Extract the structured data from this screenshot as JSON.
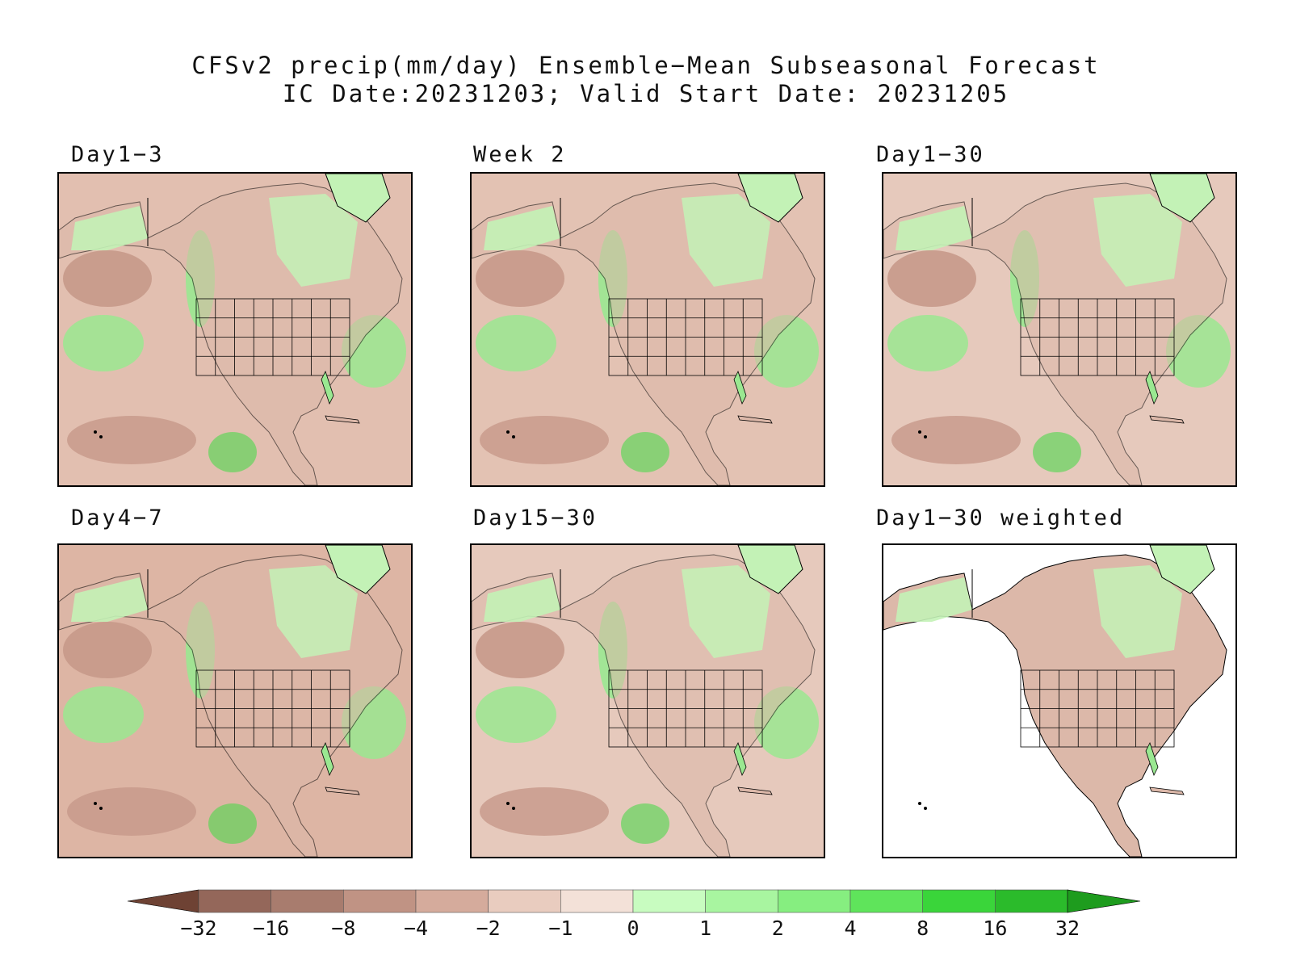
{
  "title": {
    "line1": "CFSv2 precip(mm/day) Ensemble−Mean Subseasonal Forecast",
    "line2": "IC Date:20231203; Valid Start Date: 20231205"
  },
  "panels": [
    {
      "label": "Day1−3",
      "background": "#e2bfb0",
      "wet": 3,
      "dry": 3
    },
    {
      "label": "Week 2",
      "background": "#e3c2b3",
      "wet": 2,
      "dry": 2
    },
    {
      "label": "Day1−30",
      "background": "#e6c9bc",
      "wet": 1,
      "dry": 1
    },
    {
      "label": "Day4−7",
      "background": "#ddb5a4",
      "wet": 2,
      "dry": 3
    },
    {
      "label": "Day15−30",
      "background": "#e6c9bc",
      "wet": 1,
      "dry": 1
    },
    {
      "label": "Day1−30 weighted",
      "background": "#ffffff",
      "wet": 1,
      "dry": 1
    }
  ],
  "colorbar": {
    "ticks": [
      "−32",
      "−16",
      "−8",
      "−4",
      "−2",
      "−1",
      "0",
      "1",
      "2",
      "4",
      "8",
      "16",
      "32"
    ],
    "colors": [
      "#6e4234",
      "#94675a",
      "#a87c6e",
      "#c09384",
      "#d5ab9c",
      "#e9ccbf",
      "#f3e1d8",
      "#c8fcc0",
      "#a8f5a0",
      "#86ee80",
      "#5fe45b",
      "#3ad53a",
      "#2bbb2b",
      "#1e9c1e"
    ]
  },
  "map_colors": {
    "land_tan": "#dcb8a9",
    "dry_dark": "#c7998a",
    "wet_light": "#c3f2b6",
    "wet_mid": "#9ae891",
    "wet_strong": "#4cd84c",
    "outline": "#000000"
  }
}
